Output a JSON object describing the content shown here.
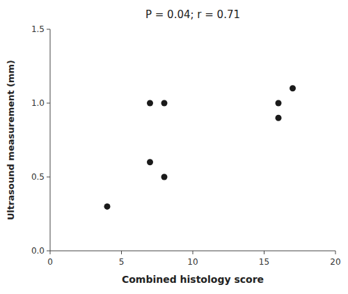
{
  "chart_data": {
    "type": "scatter",
    "title": "P = 0.04; r = 0.71",
    "xlabel": "Combined histology score",
    "ylabel": "Ultrasound measurement (mm)",
    "x": [
      4,
      7,
      8,
      7,
      8,
      16,
      16,
      17
    ],
    "y": [
      0.3,
      1.0,
      1.0,
      0.6,
      0.5,
      0.9,
      1.0,
      1.1
    ],
    "xlim": [
      0,
      20
    ],
    "ylim": [
      0.0,
      1.5
    ],
    "xticks": [
      0,
      5,
      10,
      15,
      20
    ],
    "yticks": [
      {
        "value": 0.0,
        "label": "0.0"
      },
      0.5,
      {
        "value": 1.0,
        "label": "1.0"
      },
      1.5
    ],
    "color": "#1a1a1a",
    "grid": false
  }
}
